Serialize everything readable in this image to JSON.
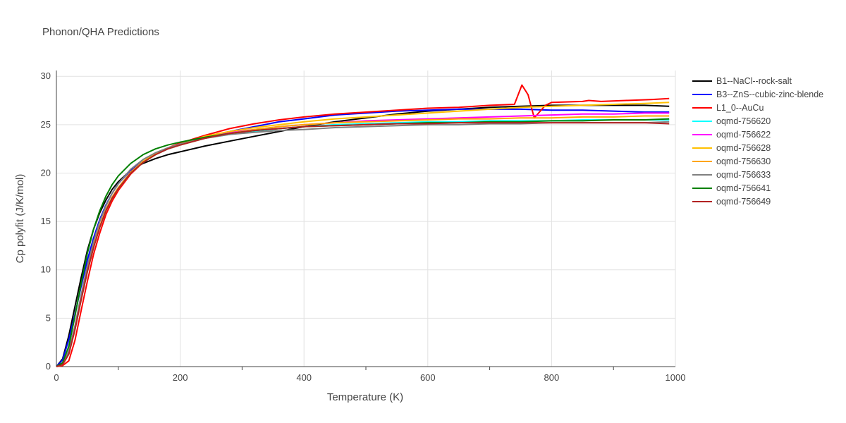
{
  "chart_data": {
    "type": "line",
    "title": "Phonon/QHA Predictions",
    "xlabel": "Temperature (K)",
    "ylabel": "Cp polyfit (J/K/mol)",
    "xlim": [
      0,
      1000
    ],
    "ylim": [
      0,
      30.6
    ],
    "xticks": [
      0,
      200,
      400,
      600,
      800,
      1000
    ],
    "yticks": [
      0,
      5,
      10,
      15,
      20,
      25,
      30
    ],
    "grid": true,
    "legend_position": "right",
    "series": [
      {
        "name": "B1--NaCl--rock-salt",
        "color": "#000000",
        "x": [
          0,
          10,
          20,
          30,
          40,
          50,
          60,
          70,
          80,
          90,
          100,
          120,
          140,
          160,
          180,
          200,
          240,
          280,
          320,
          360,
          400,
          450,
          500,
          550,
          600,
          650,
          700,
          750,
          800,
          850,
          900,
          950,
          990
        ],
        "y": [
          0,
          0.8,
          3.2,
          6.2,
          9.2,
          12.0,
          14.2,
          15.9,
          17.2,
          18.3,
          19.1,
          20.3,
          21.0,
          21.5,
          21.9,
          22.2,
          22.8,
          23.3,
          23.8,
          24.3,
          24.8,
          25.3,
          25.7,
          26.1,
          26.4,
          26.6,
          26.8,
          26.9,
          27.0,
          27.0,
          27.0,
          27.0,
          26.9
        ]
      },
      {
        "name": "B3--ZnS--cubic-zinc-blende",
        "color": "#0000ff",
        "x": [
          0,
          10,
          20,
          30,
          40,
          50,
          60,
          70,
          80,
          90,
          100,
          120,
          140,
          160,
          180,
          200,
          240,
          280,
          320,
          360,
          400,
          450,
          500,
          550,
          600,
          650,
          700,
          750,
          800,
          850,
          900,
          950,
          990
        ],
        "y": [
          0,
          0.7,
          2.8,
          5.4,
          8.3,
          11.0,
          13.3,
          15.2,
          16.7,
          17.9,
          18.9,
          20.3,
          21.2,
          21.9,
          22.5,
          22.9,
          23.7,
          24.3,
          24.8,
          25.3,
          25.6,
          26.0,
          26.2,
          26.4,
          26.5,
          26.6,
          26.6,
          26.6,
          26.5,
          26.5,
          26.4,
          26.3,
          26.3
        ]
      },
      {
        "name": "L1_0--AuCu",
        "color": "#ff0000",
        "x": [
          0,
          10,
          20,
          30,
          40,
          50,
          60,
          70,
          80,
          90,
          100,
          120,
          140,
          160,
          180,
          200,
          240,
          280,
          320,
          360,
          400,
          450,
          500,
          550,
          600,
          650,
          700,
          740,
          752,
          762,
          772,
          790,
          800,
          850,
          860,
          880,
          920,
          960,
          990
        ],
        "y": [
          0,
          0.1,
          0.6,
          2.7,
          5.8,
          8.8,
          11.6,
          13.8,
          15.7,
          17.1,
          18.2,
          19.9,
          21.1,
          21.9,
          22.6,
          23.1,
          23.9,
          24.6,
          25.1,
          25.5,
          25.8,
          26.1,
          26.3,
          26.5,
          26.7,
          26.8,
          27.0,
          27.1,
          29.1,
          28.1,
          25.7,
          27.0,
          27.3,
          27.4,
          27.5,
          27.4,
          27.5,
          27.6,
          27.7
        ]
      },
      {
        "name": "oqmd-756620",
        "color": "#00ffff",
        "x": [
          0,
          10,
          20,
          30,
          40,
          50,
          60,
          70,
          80,
          90,
          100,
          120,
          140,
          160,
          180,
          200,
          240,
          280,
          320,
          360,
          400,
          450,
          500,
          550,
          600,
          650,
          700,
          750,
          800,
          850,
          900,
          950,
          990
        ],
        "y": [
          0,
          0.2,
          1.3,
          3.8,
          6.9,
          9.8,
          12.3,
          14.4,
          16.1,
          17.4,
          18.4,
          20.0,
          21.1,
          21.9,
          22.5,
          22.9,
          23.6,
          24.0,
          24.3,
          24.6,
          24.8,
          25.0,
          25.1,
          25.2,
          25.3,
          25.3,
          25.4,
          25.4,
          25.4,
          25.5,
          25.5,
          25.5,
          25.5
        ]
      },
      {
        "name": "oqmd-756622",
        "color": "#ff00ff",
        "x": [
          0,
          10,
          20,
          30,
          40,
          50,
          60,
          70,
          80,
          90,
          100,
          120,
          140,
          160,
          180,
          200,
          240,
          280,
          320,
          360,
          400,
          450,
          500,
          550,
          600,
          650,
          700,
          750,
          800,
          850,
          900,
          950,
          990
        ],
        "y": [
          0,
          0.2,
          1.4,
          3.9,
          7.0,
          9.9,
          12.4,
          14.5,
          16.2,
          17.5,
          18.5,
          20.1,
          21.2,
          22.0,
          22.6,
          23.0,
          23.7,
          24.2,
          24.5,
          24.8,
          25.0,
          25.2,
          25.4,
          25.5,
          25.6,
          25.7,
          25.8,
          25.9,
          26.0,
          26.1,
          26.1,
          26.2,
          26.2
        ]
      },
      {
        "name": "oqmd-756628",
        "color": "#ffc000",
        "x": [
          0,
          10,
          20,
          30,
          40,
          50,
          60,
          70,
          80,
          90,
          100,
          120,
          140,
          160,
          180,
          200,
          240,
          280,
          320,
          360,
          400,
          450,
          500,
          550,
          600,
          650,
          700,
          750,
          800,
          850,
          900,
          950,
          990
        ],
        "y": [
          0,
          0.2,
          1.4,
          3.9,
          7.0,
          9.9,
          12.4,
          14.5,
          16.2,
          17.5,
          18.5,
          20.1,
          21.2,
          22.0,
          22.6,
          23.0,
          23.8,
          24.3,
          24.7,
          25.0,
          25.3,
          25.6,
          25.8,
          26.0,
          26.2,
          26.4,
          26.6,
          26.8,
          26.9,
          27.0,
          27.1,
          27.2,
          27.3
        ]
      },
      {
        "name": "oqmd-756630",
        "color": "#ffa500",
        "x": [
          0,
          10,
          20,
          30,
          40,
          50,
          60,
          70,
          80,
          90,
          100,
          120,
          140,
          160,
          180,
          200,
          240,
          280,
          320,
          360,
          400,
          450,
          500,
          550,
          600,
          650,
          700,
          750,
          800,
          850,
          900,
          950,
          990
        ],
        "y": [
          0,
          0.2,
          1.3,
          3.8,
          6.9,
          9.8,
          12.3,
          14.4,
          16.1,
          17.4,
          18.4,
          20.0,
          21.1,
          21.9,
          22.5,
          22.9,
          23.6,
          24.1,
          24.5,
          24.8,
          25.0,
          25.2,
          25.3,
          25.4,
          25.5,
          25.6,
          25.6,
          25.7,
          25.7,
          25.8,
          25.8,
          25.9,
          25.9
        ]
      },
      {
        "name": "oqmd-756633",
        "color": "#808080",
        "x": [
          0,
          10,
          20,
          30,
          40,
          50,
          60,
          70,
          80,
          90,
          100,
          120,
          140,
          160,
          180,
          200,
          240,
          280,
          320,
          360,
          400,
          450,
          500,
          550,
          600,
          650,
          700,
          750,
          800,
          850,
          900,
          950,
          990
        ],
        "y": [
          0,
          0.3,
          1.6,
          4.2,
          7.4,
          10.4,
          12.9,
          15.0,
          16.6,
          17.9,
          18.9,
          20.4,
          21.4,
          22.1,
          22.6,
          23.0,
          23.6,
          24.0,
          24.2,
          24.4,
          24.5,
          24.7,
          24.8,
          24.9,
          25.0,
          25.0,
          25.1,
          25.1,
          25.2,
          25.2,
          25.2,
          25.2,
          25.3
        ]
      },
      {
        "name": "oqmd-756641",
        "color": "#008000",
        "x": [
          0,
          10,
          20,
          30,
          40,
          50,
          60,
          70,
          80,
          90,
          100,
          120,
          140,
          160,
          180,
          200,
          240,
          280,
          320,
          360,
          400,
          450,
          500,
          550,
          600,
          650,
          700,
          750,
          800,
          850,
          900,
          950,
          990
        ],
        "y": [
          0,
          0.4,
          2.1,
          5.2,
          8.6,
          11.7,
          14.2,
          16.1,
          17.6,
          18.8,
          19.7,
          21.0,
          21.9,
          22.5,
          22.9,
          23.2,
          23.7,
          24.1,
          24.4,
          24.6,
          24.8,
          24.9,
          25.0,
          25.1,
          25.2,
          25.2,
          25.3,
          25.3,
          25.4,
          25.4,
          25.5,
          25.5,
          25.6
        ]
      },
      {
        "name": "oqmd-756649",
        "color": "#b22222",
        "x": [
          0,
          10,
          20,
          30,
          40,
          50,
          60,
          70,
          80,
          90,
          100,
          120,
          140,
          160,
          180,
          200,
          240,
          280,
          320,
          360,
          400,
          450,
          500,
          550,
          600,
          650,
          700,
          750,
          800,
          850,
          900,
          950,
          990
        ],
        "y": [
          0,
          0.2,
          1.3,
          3.8,
          6.9,
          9.8,
          12.3,
          14.4,
          16.1,
          17.4,
          18.4,
          20.0,
          21.1,
          21.9,
          22.5,
          22.9,
          23.6,
          24.1,
          24.4,
          24.6,
          24.8,
          24.9,
          25.0,
          25.1,
          25.1,
          25.2,
          25.2,
          25.2,
          25.2,
          25.2,
          25.2,
          25.2,
          25.1
        ]
      }
    ]
  }
}
